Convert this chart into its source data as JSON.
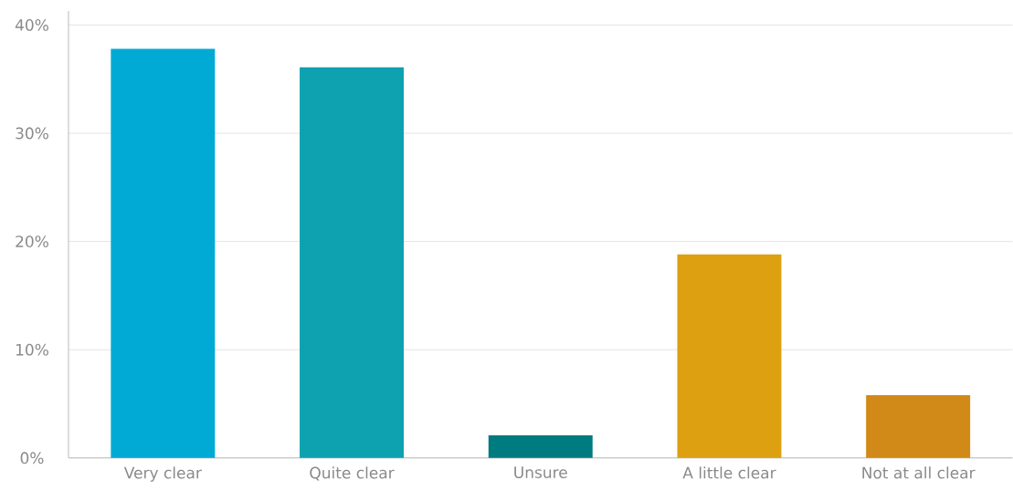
{
  "chart_data": {
    "type": "bar",
    "categories": [
      "Very clear",
      "Quite clear",
      "Unsure",
      "A little clear",
      "Not at all clear"
    ],
    "values": [
      37.8,
      36.1,
      2.1,
      18.8,
      5.8
    ],
    "colors": [
      "#00aad4",
      "#0ea2b1",
      "#007b80",
      "#dca010",
      "#d18a18"
    ],
    "ylim": [
      0,
      41.3
    ],
    "yticks": [
      {
        "value": 0,
        "label": "0%"
      },
      {
        "value": 10,
        "label": "10%"
      },
      {
        "value": 20,
        "label": "20%"
      },
      {
        "value": 30,
        "label": "30%"
      },
      {
        "value": 40,
        "label": "40%"
      }
    ],
    "grid": "y"
  }
}
